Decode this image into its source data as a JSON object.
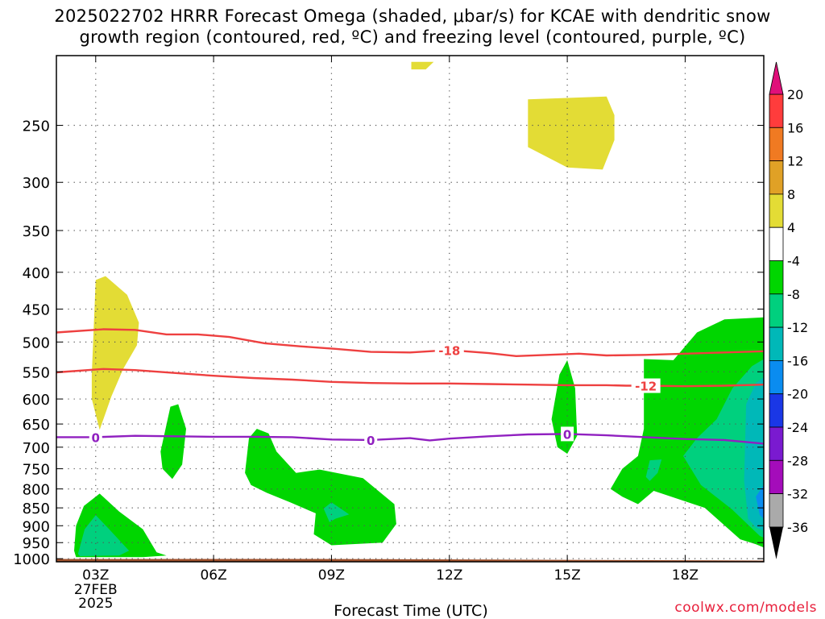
{
  "title_line1": "2025022702 HRRR Forecast Omega (shaded, μbar/s) for KCAE with dendritic snow",
  "title_line2": "growth region (contoured, red, ºC) and freezing level (contoured, purple, ºC)",
  "credit": "coolwx.com/models",
  "chart_data": {
    "type": "heatmap",
    "title": "2025022702 HRRR Forecast Omega (shaded, μbar/s) for KCAE with dendritic snow growth region (contoured, red, ºC) and freezing level (contoured, purple, ºC)",
    "xlabel": "Forecast Time (UTC)",
    "ylabel": "",
    "x_unit": "forecast hour (UTC)",
    "xlim": [
      2,
      20
    ],
    "x_ticks": [
      {
        "h": 3,
        "label": "03Z",
        "sub": [
          "27FEB",
          "2025"
        ]
      },
      {
        "h": 6,
        "label": "06Z"
      },
      {
        "h": 9,
        "label": "09Z"
      },
      {
        "h": 12,
        "label": "12Z"
      },
      {
        "h": 15,
        "label": "15Z"
      },
      {
        "h": 18,
        "label": "18Z"
      }
    ],
    "y_unit": "pressure (mb)",
    "y_scale": "log",
    "ylim": [
      1010,
      200
    ],
    "y_ticks": [
      250,
      300,
      350,
      400,
      450,
      500,
      550,
      600,
      650,
      700,
      750,
      800,
      850,
      900,
      950,
      1000
    ],
    "grid": true,
    "colorbar": {
      "labels": [
        "20",
        "16",
        "12",
        "8",
        "4",
        "-4",
        "-8",
        "-12",
        "-16",
        "-20",
        "-24",
        "-28",
        "-32",
        "-36"
      ],
      "colors": [
        "#ff3c3c",
        "#f07a22",
        "#e0a126",
        "#e3dc35",
        "#ffffff",
        "#00d600",
        "#00d07e",
        "#00b8b8",
        "#0a8cf0",
        "#1a37e6",
        "#7a1ad0",
        "#a40cba",
        "#aaaaaa"
      ],
      "top_color": "#e0107a",
      "bottom_color": "#000000"
    },
    "regions": [
      {
        "level": "4..8",
        "color": "#e3dc35",
        "points": [
          [
            11.03,
            204
          ],
          [
            11.6,
            204
          ],
          [
            11.4,
            209
          ],
          [
            11.03,
            209
          ]
        ]
      },
      {
        "level": "4..8",
        "color": "#e3dc35",
        "points": [
          [
            14.0,
            230
          ],
          [
            16.0,
            228
          ],
          [
            16.2,
            242
          ],
          [
            16.2,
            262
          ],
          [
            15.9,
            288
          ],
          [
            15.0,
            286
          ],
          [
            14.0,
            268
          ]
        ]
      },
      {
        "level": "4..8",
        "color": "#e3dc35",
        "points": [
          [
            2.9,
            555
          ],
          [
            3.0,
            410
          ],
          [
            3.25,
            405
          ],
          [
            3.8,
            430
          ],
          [
            4.1,
            470
          ],
          [
            4.05,
            505
          ],
          [
            3.7,
            545
          ],
          [
            3.4,
            595
          ],
          [
            3.1,
            662
          ],
          [
            2.9,
            600
          ]
        ]
      },
      {
        "level": "-4..-8",
        "color": "#00d600",
        "points": [
          [
            2.45,
            975
          ],
          [
            2.5,
            900
          ],
          [
            2.7,
            845
          ],
          [
            3.1,
            812
          ],
          [
            3.6,
            860
          ],
          [
            4.2,
            910
          ],
          [
            4.55,
            980
          ],
          [
            4.8,
            990
          ],
          [
            4.2,
            995
          ],
          [
            2.5,
            995
          ]
        ]
      },
      {
        "level": "-8..-12",
        "color": "#00d07e",
        "points": [
          [
            2.55,
            985
          ],
          [
            2.72,
            910
          ],
          [
            3.0,
            870
          ],
          [
            3.3,
            905
          ],
          [
            3.85,
            975
          ],
          [
            3.6,
            990
          ],
          [
            2.6,
            992
          ]
        ]
      },
      {
        "level": "-4..-8",
        "color": "#00d600",
        "points": [
          [
            4.65,
            710
          ],
          [
            4.9,
            615
          ],
          [
            5.1,
            610
          ],
          [
            5.3,
            660
          ],
          [
            5.2,
            740
          ],
          [
            4.95,
            775
          ],
          [
            4.7,
            750
          ]
        ]
      },
      {
        "level": "-4..-8",
        "color": "#00d600",
        "points": [
          [
            6.8,
            760
          ],
          [
            6.9,
            680
          ],
          [
            7.1,
            660
          ],
          [
            7.4,
            670
          ],
          [
            7.6,
            710
          ],
          [
            8.1,
            760
          ],
          [
            8.7,
            752
          ],
          [
            9.8,
            773
          ],
          [
            10.6,
            840
          ],
          [
            10.65,
            895
          ],
          [
            10.3,
            950
          ],
          [
            9.0,
            958
          ],
          [
            8.55,
            925
          ],
          [
            8.6,
            865
          ],
          [
            7.95,
            835
          ],
          [
            7.35,
            810
          ],
          [
            6.95,
            790
          ]
        ]
      },
      {
        "level": "-8..-12",
        "color": "#00d07e",
        "points": [
          [
            8.8,
            852
          ],
          [
            9.0,
            835
          ],
          [
            9.45,
            868
          ],
          [
            9.1,
            880
          ],
          [
            8.95,
            890
          ]
        ]
      },
      {
        "level": "-4..-8",
        "color": "#00d600",
        "points": [
          [
            14.6,
            640
          ],
          [
            14.8,
            555
          ],
          [
            15.0,
            530
          ],
          [
            15.2,
            580
          ],
          [
            15.25,
            675
          ],
          [
            15.0,
            715
          ],
          [
            14.75,
            700
          ]
        ]
      },
      {
        "level": "-4..-8",
        "color": "#00d600",
        "points": [
          [
            16.1,
            800
          ],
          [
            16.4,
            750
          ],
          [
            16.8,
            720
          ],
          [
            16.95,
            660
          ],
          [
            16.95,
            528
          ],
          [
            17.7,
            530
          ],
          [
            18.3,
            485
          ],
          [
            19.0,
            465
          ],
          [
            20.0,
            462
          ],
          [
            20.0,
            965
          ],
          [
            19.8,
            955
          ],
          [
            19.4,
            940
          ],
          [
            18.5,
            850
          ],
          [
            17.2,
            805
          ],
          [
            16.8,
            840
          ],
          [
            16.4,
            820
          ]
        ]
      },
      {
        "level": "-8..-12",
        "color": "#00d07e",
        "points": [
          [
            17.0,
            770
          ],
          [
            17.1,
            730
          ],
          [
            17.4,
            728
          ],
          [
            17.3,
            760
          ],
          [
            17.1,
            780
          ]
        ]
      },
      {
        "level": "-8..-12",
        "color": "#00d07e",
        "points": [
          [
            17.95,
            720
          ],
          [
            18.3,
            680
          ],
          [
            18.8,
            640
          ],
          [
            19.2,
            580
          ],
          [
            19.7,
            540
          ],
          [
            20.0,
            528
          ],
          [
            20.0,
            935
          ],
          [
            19.9,
            930
          ],
          [
            19.2,
            855
          ],
          [
            18.4,
            790
          ]
        ]
      },
      {
        "level": "-12..-16",
        "color": "#00b8b8",
        "points": [
          [
            19.55,
            610
          ],
          [
            19.8,
            570
          ],
          [
            20.0,
            560
          ],
          [
            20.0,
            915
          ],
          [
            19.8,
            905
          ],
          [
            19.6,
            880
          ],
          [
            19.5,
            780
          ]
        ]
      },
      {
        "level": "-16..-20",
        "color": "#0a8cf0",
        "points": [
          [
            19.8,
            820
          ],
          [
            20.0,
            790
          ],
          [
            20.0,
            880
          ],
          [
            19.9,
            870
          ]
        ]
      }
    ],
    "ground": {
      "color": "#a0522d",
      "points": [
        [
          2,
          1001
        ],
        [
          8.6,
          1001
        ],
        [
          13.2,
          1003
        ],
        [
          20,
          1006
        ],
        [
          20,
          1010
        ],
        [
          2,
          1010
        ]
      ]
    },
    "contours": [
      {
        "value": -18,
        "label": "-18",
        "color": "#ee4040",
        "points": [
          [
            2,
            485
          ],
          [
            3.2,
            480
          ],
          [
            4.0,
            481
          ],
          [
            4.8,
            488
          ],
          [
            5.6,
            488
          ],
          [
            6.4,
            492
          ],
          [
            7.3,
            502
          ],
          [
            8.2,
            507
          ],
          [
            9.1,
            511
          ],
          [
            10.0,
            516
          ],
          [
            11.0,
            517
          ],
          [
            12.0,
            513
          ],
          [
            13.0,
            518
          ],
          [
            13.7,
            523
          ],
          [
            14.5,
            521
          ],
          [
            15.3,
            519
          ],
          [
            16.0,
            522
          ],
          [
            17.0,
            521
          ],
          [
            18.0,
            519
          ],
          [
            19.0,
            517
          ],
          [
            20.0,
            515
          ]
        ],
        "label_at": 12.0
      },
      {
        "value": -12,
        "label": "-12",
        "color": "#ee4040",
        "points": [
          [
            2,
            551
          ],
          [
            3.2,
            545
          ],
          [
            4.0,
            547
          ],
          [
            5.0,
            552
          ],
          [
            6.0,
            557
          ],
          [
            7.0,
            561
          ],
          [
            8.0,
            564
          ],
          [
            9.0,
            568
          ],
          [
            10.0,
            570
          ],
          [
            11.0,
            571
          ],
          [
            12.0,
            571
          ],
          [
            13.0,
            572
          ],
          [
            14.0,
            573
          ],
          [
            15.0,
            574
          ],
          [
            16.0,
            574
          ],
          [
            16.5,
            575
          ],
          [
            17.0,
            575
          ],
          [
            18.0,
            576
          ],
          [
            19.0,
            575
          ],
          [
            20.0,
            573
          ]
        ],
        "label_at": 17.0
      },
      {
        "value": 0,
        "label": "0",
        "color": "#9020c0",
        "points": [
          [
            2,
            678
          ],
          [
            3.0,
            678
          ],
          [
            4.0,
            675
          ],
          [
            5.0,
            676
          ],
          [
            6.0,
            677
          ],
          [
            7.0,
            677
          ],
          [
            8.0,
            678
          ],
          [
            9.0,
            683
          ],
          [
            10.0,
            684
          ],
          [
            11.0,
            680
          ],
          [
            11.5,
            685
          ],
          [
            12.0,
            681
          ],
          [
            13.0,
            676
          ],
          [
            14.0,
            672
          ],
          [
            15.0,
            671
          ],
          [
            16.0,
            674
          ],
          [
            17.0,
            678
          ],
          [
            18.0,
            682
          ],
          [
            19.0,
            684
          ],
          [
            20.0,
            692
          ]
        ],
        "label_at": [
          3.0,
          10.0,
          15.0
        ]
      }
    ]
  }
}
